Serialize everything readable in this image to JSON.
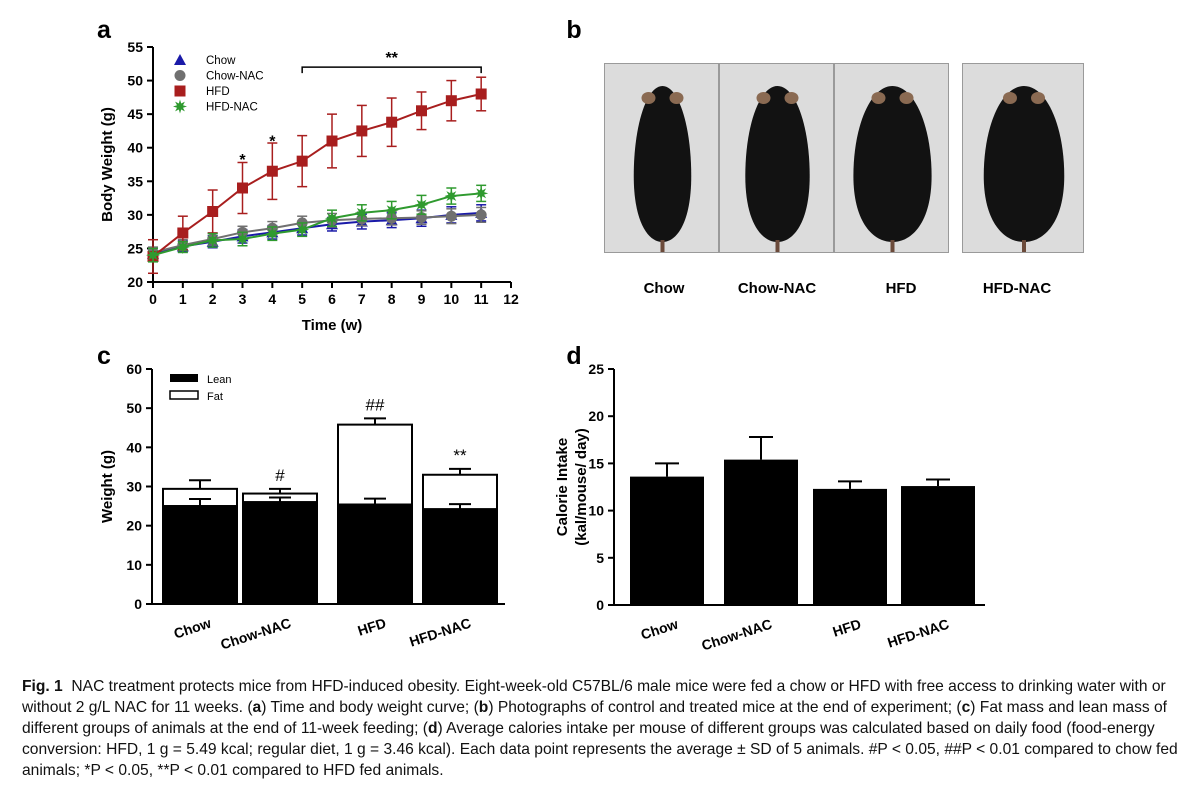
{
  "panel_labels": {
    "a": "a",
    "b": "b",
    "c": "c",
    "d": "d"
  },
  "colors": {
    "chow": "#1a1aa8",
    "chow_nac": "#707070",
    "hfd": "#a81e1e",
    "hfd_nac": "#2f9a2f",
    "bar": "#000000"
  },
  "panel_b": {
    "labels": [
      "Chow",
      "Chow-NAC",
      "HFD",
      "HFD-NAC"
    ]
  },
  "caption": {
    "fig_label": "Fig. 1",
    "title": "NAC treatment protects mice from HFD-induced obesity.",
    "text1": "Eight-week-old C57BL/6 male mice were fed a chow or HFD with free access to drinking water with or without 2 g/L NAC for 11 weeks. (",
    "a": "a",
    "text2": ") Time and body weight curve; (",
    "b": "b",
    "text3": ") Photographs of control and treated mice at the end of experiment; (",
    "c": "c",
    "text4": ") Fat mass and lean mass of different groups of animals at the end of 11-week feeding; (",
    "d": "d",
    "text5": ") Average calories intake per mouse of different groups was calculated based on daily food (food-energy conversion: HFD, 1 g = 5.49 kcal; regular diet, 1 g = 3.46 kcal). Each data point represents the average ± SD of 5 animals. #P < 0.05, ##P < 0.01 compared to chow fed animals; *P < 0.05, **P < 0.01 compared to HFD fed animals."
  },
  "chart_data": [
    {
      "id": "a",
      "type": "line",
      "xlabel": "Time (w)",
      "ylabel": "Body Weight (g)",
      "xlim": [
        0,
        12
      ],
      "ylim": [
        20,
        55
      ],
      "xticks": [
        0,
        1,
        2,
        3,
        4,
        5,
        6,
        7,
        8,
        9,
        10,
        11,
        12
      ],
      "yticks": [
        20,
        25,
        30,
        35,
        40,
        45,
        50,
        55
      ],
      "x": [
        0,
        1,
        2,
        3,
        4,
        5,
        6,
        7,
        8,
        9,
        10,
        11
      ],
      "series": [
        {
          "name": "Chow",
          "marker": "triangle",
          "color": "#1a1aa8",
          "values": [
            24.2,
            25.3,
            26.0,
            26.8,
            27.4,
            28.0,
            28.6,
            29.0,
            29.2,
            29.5,
            30.0,
            30.3
          ],
          "err": [
            0.8,
            0.8,
            0.9,
            1.0,
            1.0,
            1.0,
            1.0,
            1.1,
            1.1,
            1.2,
            1.2,
            1.2
          ]
        },
        {
          "name": "Chow-NAC",
          "marker": "circle",
          "color": "#707070",
          "values": [
            24.4,
            25.5,
            26.4,
            27.4,
            28.0,
            28.8,
            29.2,
            29.4,
            29.5,
            29.6,
            29.8,
            30.0
          ],
          "err": [
            0.8,
            0.8,
            0.9,
            0.9,
            1.0,
            1.0,
            1.0,
            1.0,
            1.0,
            1.0,
            1.1,
            1.1
          ]
        },
        {
          "name": "HFD",
          "marker": "square",
          "color": "#a81e1e",
          "values": [
            23.8,
            27.3,
            30.5,
            34.0,
            36.5,
            38.0,
            41.0,
            42.5,
            43.8,
            45.5,
            47.0,
            48.0
          ],
          "err": [
            2.5,
            2.5,
            3.2,
            3.8,
            4.2,
            3.8,
            4.0,
            3.8,
            3.6,
            2.8,
            3.0,
            2.5
          ]
        },
        {
          "name": "HFD-NAC",
          "marker": "star",
          "color": "#2f9a2f",
          "values": [
            24.0,
            25.2,
            26.2,
            26.4,
            27.2,
            27.8,
            29.5,
            30.3,
            30.7,
            31.5,
            32.8,
            33.2
          ],
          "err": [
            1.0,
            0.8,
            1.0,
            1.0,
            1.0,
            1.0,
            1.2,
            1.2,
            1.3,
            1.4,
            1.2,
            1.2
          ]
        }
      ],
      "annotations": [
        {
          "text": "*",
          "x": 3,
          "y": 38.6
        },
        {
          "text": "*",
          "x": 4,
          "y": 41.4
        },
        {
          "text": "**",
          "x_start": 5,
          "x_end": 11,
          "y": 52.0
        }
      ],
      "legend_position": "top-left"
    },
    {
      "id": "c",
      "type": "bar",
      "stacked": true,
      "ylabel": "Weight (g)",
      "ylim": [
        0,
        60
      ],
      "yticks": [
        0,
        10,
        20,
        30,
        40,
        50,
        60
      ],
      "categories": [
        "Chow",
        "Chow-NAC",
        "HFD",
        "HFD-NAC"
      ],
      "series": [
        {
          "name": "Lean",
          "fill": "black",
          "values": [
            25.0,
            26.0,
            25.4,
            24.2
          ],
          "err": [
            1.8,
            1.2,
            1.5,
            1.3
          ]
        },
        {
          "name": "Fat",
          "fill": "white",
          "values": [
            4.4,
            2.2,
            20.4,
            8.8
          ],
          "err": [
            2.2,
            1.2,
            1.6,
            1.5
          ]
        }
      ],
      "annotations": [
        "",
        "#",
        "##",
        "**"
      ],
      "legend_position": "top-left"
    },
    {
      "id": "d",
      "type": "bar",
      "ylabel_line1": "Calorie Intake",
      "ylabel_line2": "(kal/mouse/ day)",
      "ylim": [
        0,
        25
      ],
      "yticks": [
        0,
        5,
        10,
        15,
        20,
        25
      ],
      "categories": [
        "Chow",
        "Chow-NAC",
        "HFD",
        "HFD-NAC"
      ],
      "values": [
        13.6,
        15.4,
        12.3,
        12.6
      ],
      "err": [
        1.4,
        2.4,
        0.8,
        0.7
      ]
    }
  ]
}
